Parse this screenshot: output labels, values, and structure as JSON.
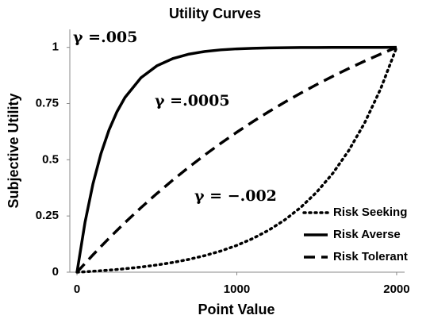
{
  "chart_data": {
    "type": "line",
    "title": "Utility Curves",
    "x_label": "Point Value",
    "y_label": "Subjective Utility",
    "x": [
      0,
      50,
      100,
      150,
      200,
      250,
      300,
      400,
      500,
      600,
      700,
      800,
      900,
      1000,
      1100,
      1200,
      1300,
      1400,
      1500,
      1600,
      1700,
      1800,
      1900,
      2000
    ],
    "series": [
      {
        "name": "Risk Seeking",
        "color": "#000000",
        "style": "dotted",
        "values": [
          0,
          0.002,
          0.0041,
          0.0065,
          0.0092,
          0.0121,
          0.0153,
          0.0229,
          0.0321,
          0.0433,
          0.057,
          0.0738,
          0.0942,
          0.1192,
          0.1497,
          0.187,
          0.2325,
          0.2882,
          0.3561,
          0.4391,
          0.5404,
          0.6642,
          0.8153,
          1
        ]
      },
      {
        "name": "Risk Averse",
        "color": "#000000",
        "style": "solid",
        "values": [
          0,
          0.2212,
          0.3935,
          0.5276,
          0.6321,
          0.7135,
          0.7769,
          0.8647,
          0.9179,
          0.9502,
          0.9698,
          0.9817,
          0.9889,
          0.9933,
          0.9959,
          0.9975,
          0.9985,
          0.9991,
          0.9994,
          0.9997,
          0.9998,
          0.9999,
          0.9999,
          1
        ]
      },
      {
        "name": "Risk Tolerant",
        "color": "#000000",
        "style": "dashed",
        "values": [
          0,
          0.0391,
          0.0772,
          0.1143,
          0.1505,
          0.1859,
          0.2204,
          0.2868,
          0.3499,
          0.41,
          0.4671,
          0.5216,
          0.5733,
          0.6225,
          0.6693,
          0.7138,
          0.7562,
          0.7964,
          0.8347,
          0.8712,
          0.9058,
          0.9388,
          0.9702,
          1
        ]
      }
    ],
    "annotations": [
      "γ =.005",
      "γ =.0005",
      "γ = −.002"
    ],
    "xlim": [
      -45,
      2050
    ],
    "xticks": [
      0,
      1000,
      2000
    ],
    "ylim": [
      0,
      1.08
    ],
    "yticks": [
      0,
      0.25,
      0.5,
      0.75,
      1
    ],
    "grid": false,
    "legend": "lower right"
  }
}
